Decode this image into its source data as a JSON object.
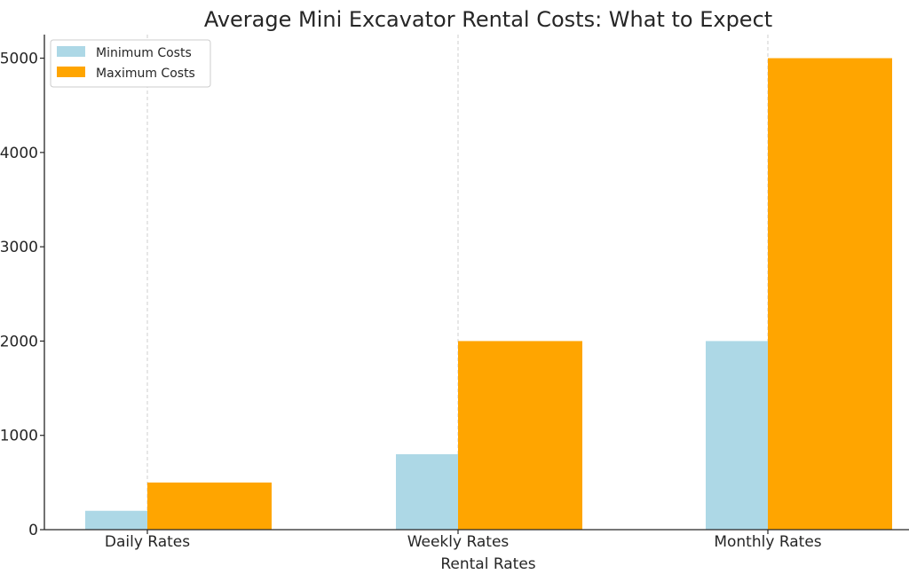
{
  "chart_data": {
    "type": "bar",
    "title": "Average Mini Excavator Rental Costs: What to Expect",
    "xlabel": "Rental Rates",
    "ylabel": "",
    "categories": [
      "Daily Rates",
      "Weekly Rates",
      "Monthly Rates"
    ],
    "series": [
      {
        "name": "Minimum Costs",
        "values": [
          200,
          800,
          2000
        ],
        "color": "#add8e6"
      },
      {
        "name": "Maximum Costs",
        "values": [
          500,
          2000,
          5000
        ],
        "color": "#ffa500"
      }
    ],
    "ylim": [
      0,
      5250
    ],
    "yticks": [
      "0",
      "1000",
      "2000",
      "3000",
      "4000",
      "5000"
    ],
    "grid": "x-only dashed",
    "legend_position": "top-left"
  }
}
